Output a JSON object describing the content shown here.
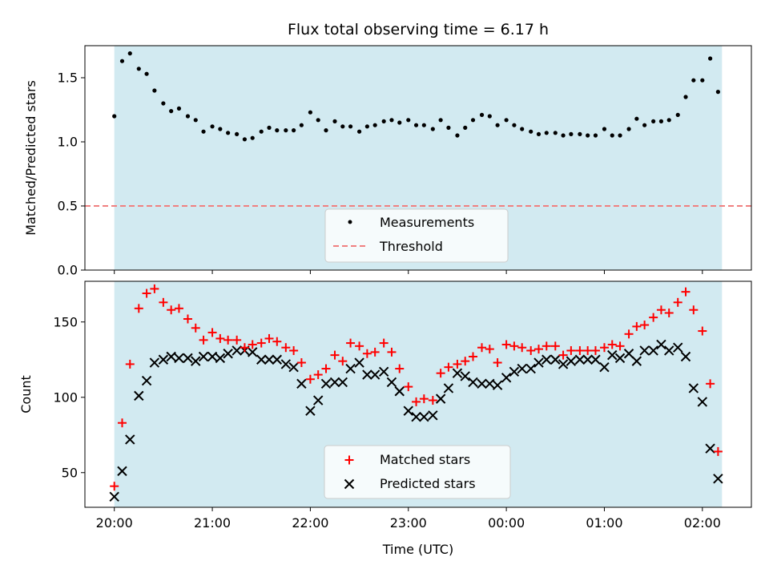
{
  "chart_data": [
    {
      "type": "scatter",
      "title": "Flux total observing time = 6.17 h",
      "xlabel": "",
      "ylabel": "Matched/Predicted stars",
      "ylim": [
        0,
        1.75
      ],
      "yticks": [
        "0.0",
        "0.5",
        "1.0",
        "1.5"
      ],
      "ytick_values": [
        0,
        0.5,
        1.0,
        1.5
      ],
      "xticks": [
        "20:00",
        "21:00",
        "22:00",
        "23:00",
        "00:00",
        "01:00",
        "02:00"
      ],
      "xlim": [
        -0.3,
        6.5
      ],
      "shaded_x_range": [
        0,
        6.2
      ],
      "shade_color": "#add8e6",
      "threshold": 0.5,
      "threshold_color": "#f08080",
      "marker_color": "#000000",
      "legend": {
        "position": "lower center",
        "entries": [
          "Measurements",
          "Threshold"
        ]
      },
      "series": [
        {
          "name": "Measurements",
          "x": [
            0.0,
            0.08,
            0.16,
            0.25,
            0.33,
            0.41,
            0.5,
            0.58,
            0.66,
            0.75,
            0.83,
            0.91,
            1.0,
            1.08,
            1.16,
            1.25,
            1.33,
            1.41,
            1.5,
            1.58,
            1.66,
            1.75,
            1.83,
            1.91,
            2.0,
            2.08,
            2.16,
            2.25,
            2.33,
            2.41,
            2.5,
            2.58,
            2.66,
            2.75,
            2.83,
            2.91,
            3.0,
            3.08,
            3.16,
            3.25,
            3.33,
            3.41,
            3.5,
            3.58,
            3.66,
            3.75,
            3.83,
            3.91,
            4.0,
            4.08,
            4.16,
            4.25,
            4.33,
            4.41,
            4.5,
            4.58,
            4.66,
            4.75,
            4.83,
            4.91,
            5.0,
            5.08,
            5.16,
            5.25,
            5.33,
            5.41,
            5.5,
            5.58,
            5.66,
            5.75,
            5.83,
            5.91,
            6.0,
            6.08,
            6.16
          ],
          "y": [
            1.2,
            1.63,
            1.69,
            1.57,
            1.53,
            1.4,
            1.3,
            1.24,
            1.26,
            1.2,
            1.17,
            1.08,
            1.12,
            1.1,
            1.07,
            1.06,
            1.02,
            1.03,
            1.08,
            1.11,
            1.09,
            1.09,
            1.09,
            1.13,
            1.23,
            1.17,
            1.09,
            1.16,
            1.12,
            1.12,
            1.08,
            1.12,
            1.13,
            1.16,
            1.17,
            1.15,
            1.17,
            1.13,
            1.13,
            1.1,
            1.17,
            1.11,
            1.05,
            1.11,
            1.17,
            1.21,
            1.2,
            1.13,
            1.17,
            1.13,
            1.1,
            1.08,
            1.06,
            1.07,
            1.07,
            1.05,
            1.06,
            1.06,
            1.05,
            1.05,
            1.1,
            1.05,
            1.05,
            1.1,
            1.18,
            1.13,
            1.16,
            1.16,
            1.17,
            1.21,
            1.35,
            1.48,
            1.48,
            1.65,
            1.39
          ]
        }
      ]
    },
    {
      "type": "scatter",
      "title": "",
      "xlabel": "Time (UTC)",
      "ylabel": "Count",
      "ylim": [
        27,
        177
      ],
      "yticks": [
        "50",
        "100",
        "150"
      ],
      "ytick_values": [
        50,
        100,
        150
      ],
      "xticks": [
        "20:00",
        "21:00",
        "22:00",
        "23:00",
        "00:00",
        "01:00",
        "02:00"
      ],
      "xlim": [
        -0.3,
        6.5
      ],
      "shaded_x_range": [
        0,
        6.2
      ],
      "shade_color": "#add8e6",
      "legend": {
        "position": "lower center",
        "entries": [
          "Matched stars",
          "Predicted stars"
        ]
      },
      "series": [
        {
          "name": "Matched stars",
          "marker": "plus",
          "color": "#ff0000",
          "x": [
            0.0,
            0.08,
            0.16,
            0.25,
            0.33,
            0.41,
            0.5,
            0.58,
            0.66,
            0.75,
            0.83,
            0.91,
            1.0,
            1.08,
            1.16,
            1.25,
            1.33,
            1.41,
            1.5,
            1.58,
            1.66,
            1.75,
            1.83,
            1.91,
            2.0,
            2.08,
            2.16,
            2.25,
            2.33,
            2.41,
            2.5,
            2.58,
            2.66,
            2.75,
            2.83,
            2.91,
            3.0,
            3.08,
            3.16,
            3.25,
            3.33,
            3.41,
            3.5,
            3.58,
            3.66,
            3.75,
            3.83,
            3.91,
            4.0,
            4.08,
            4.16,
            4.25,
            4.33,
            4.41,
            4.5,
            4.58,
            4.66,
            4.75,
            4.83,
            4.91,
            5.0,
            5.08,
            5.16,
            5.25,
            5.33,
            5.41,
            5.5,
            5.58,
            5.66,
            5.75,
            5.83,
            5.91,
            6.0,
            6.08,
            6.16
          ],
          "y": [
            41,
            83,
            122,
            159,
            169,
            172,
            163,
            158,
            159,
            152,
            146,
            138,
            143,
            139,
            138,
            138,
            133,
            135,
            136,
            139,
            137,
            133,
            131,
            123,
            112,
            115,
            119,
            128,
            124,
            136,
            134,
            129,
            130,
            136,
            130,
            119,
            107,
            97,
            99,
            98,
            116,
            120,
            122,
            124,
            127,
            133,
            132,
            123,
            135,
            134,
            133,
            131,
            132,
            134,
            134,
            128,
            131,
            131,
            131,
            131,
            133,
            135,
            134,
            142,
            147,
            148,
            153,
            158,
            156,
            163,
            170,
            158,
            144,
            109,
            64
          ]
        },
        {
          "name": "Predicted stars",
          "marker": "x",
          "color": "#000000",
          "x": [
            0.0,
            0.08,
            0.16,
            0.25,
            0.33,
            0.41,
            0.5,
            0.58,
            0.66,
            0.75,
            0.83,
            0.91,
            1.0,
            1.08,
            1.16,
            1.25,
            1.33,
            1.41,
            1.5,
            1.58,
            1.66,
            1.75,
            1.83,
            1.91,
            2.0,
            2.08,
            2.16,
            2.25,
            2.33,
            2.41,
            2.5,
            2.58,
            2.66,
            2.75,
            2.83,
            2.91,
            3.0,
            3.08,
            3.16,
            3.25,
            3.33,
            3.41,
            3.5,
            3.58,
            3.66,
            3.75,
            3.83,
            3.91,
            4.0,
            4.08,
            4.16,
            4.25,
            4.33,
            4.41,
            4.5,
            4.58,
            4.66,
            4.75,
            4.83,
            4.91,
            5.0,
            5.08,
            5.16,
            5.25,
            5.33,
            5.41,
            5.5,
            5.58,
            5.66,
            5.75,
            5.83,
            5.91,
            6.0,
            6.08,
            6.16
          ],
          "y": [
            34,
            51,
            72,
            101,
            111,
            123,
            125,
            127,
            126,
            126,
            124,
            127,
            127,
            126,
            129,
            131,
            131,
            130,
            125,
            125,
            125,
            122,
            120,
            109,
            91,
            98,
            109,
            110,
            110,
            119,
            123,
            115,
            115,
            117,
            110,
            104,
            91,
            87,
            87,
            88,
            99,
            106,
            116,
            114,
            110,
            109,
            109,
            108,
            113,
            117,
            119,
            119,
            123,
            125,
            125,
            122,
            124,
            125,
            125,
            125,
            120,
            128,
            126,
            129,
            124,
            131,
            131,
            135,
            131,
            133,
            127,
            106,
            97,
            66,
            46
          ]
        }
      ]
    }
  ]
}
